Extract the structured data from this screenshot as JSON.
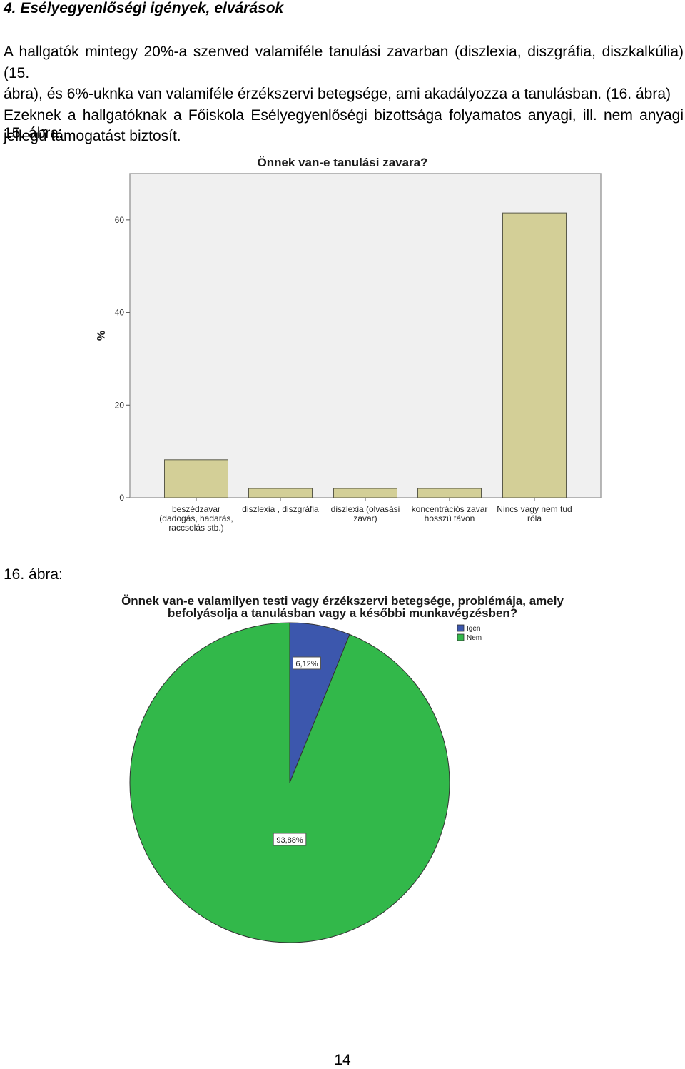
{
  "section_heading": "4. Esélyegyenlőségi igények, elvárások",
  "paragraph": {
    "line1": "A hallgatók mintegy 20%-a szenved valamiféle tanulási zavarban (diszlexia, diszgráfia, diszkalkúlia) (15.",
    "line2": "ábra), és 6%-uknka van valamiféle érzékszervi betegsége, ami akadályozza a tanulásban. (16. ábra)",
    "line3": "Ezeknek a hallgatóknak a Főiskola Esélyegyenlőségi bizottsága folyamatos anyagi, ill. nem anyagi",
    "line4": "jellegű támogatást biztosít."
  },
  "figure15_label": "15. ábra:",
  "figure16_label": "16. ábra:",
  "page_number": "14",
  "colors": {
    "bar_fill": "#d3cf97",
    "plot_bg": "#f0f0f0",
    "pie_igen": "#3c57ad",
    "pie_nem": "#32b84a"
  },
  "chart_data": [
    {
      "type": "bar",
      "title": "Önnek van-e tanulási zavara?",
      "ylabel": "%",
      "xlabel": "",
      "ylim": [
        0,
        70
      ],
      "yticks": [
        "0",
        "20",
        "40",
        "60"
      ],
      "categories": [
        [
          "beszédzavar",
          "(dadogás, hadarás,",
          "raccsolás stb.)"
        ],
        [
          "diszlexia , diszgráfia"
        ],
        [
          "diszlexia (olvasási",
          "zavar)"
        ],
        [
          "koncentrációs zavar",
          "hosszú távon"
        ],
        [
          "Nincs vagy nem tud",
          "róla"
        ]
      ],
      "values": [
        8.2,
        2.0,
        2.0,
        2.0,
        61.5
      ],
      "grid": false
    },
    {
      "type": "pie",
      "title": [
        "Önnek van-e valamilyen testi vagy érzékszervi betegsége, problémája, amely",
        "befolyásolja a tanulásban vagy a későbbi munkavégzésben?"
      ],
      "slices": [
        {
          "name": "Igen",
          "value": 6.12,
          "label": "6,12%"
        },
        {
          "name": "Nem",
          "value": 93.88,
          "label": "93,88%"
        }
      ],
      "legend": "top-right"
    }
  ]
}
